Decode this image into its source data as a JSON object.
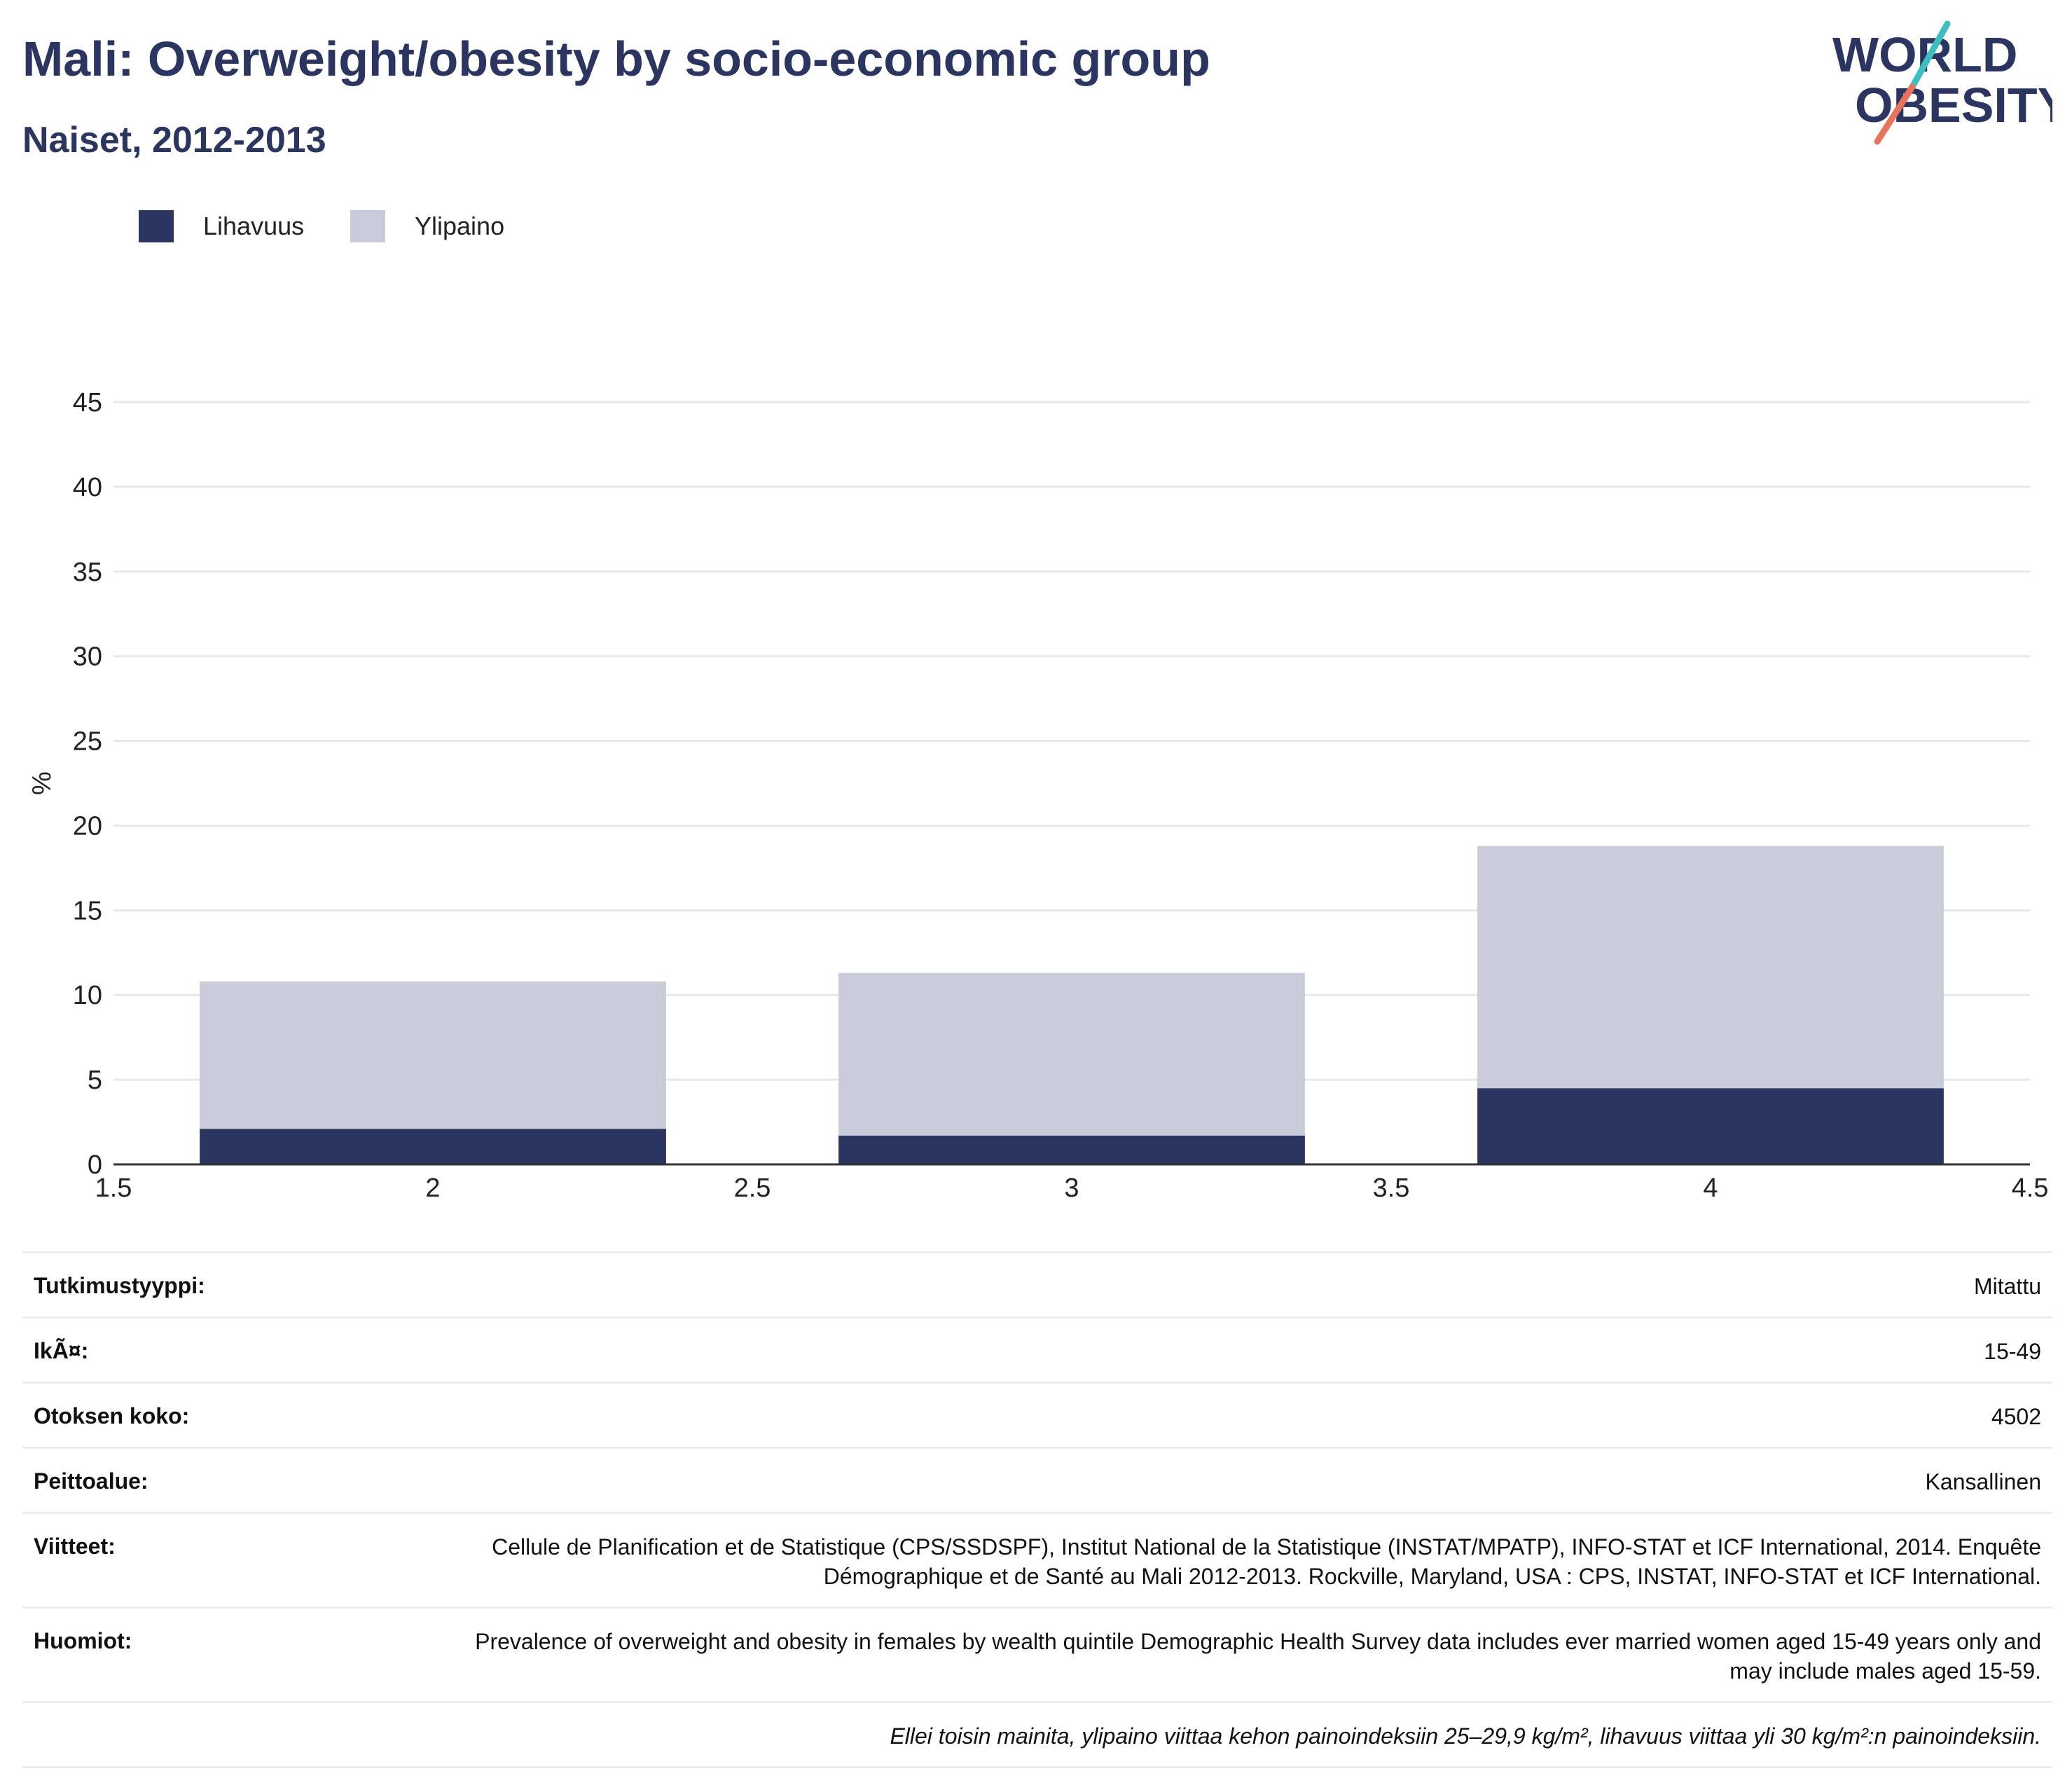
{
  "header": {
    "title": "Mali: Overweight/obesity by socio-economic group",
    "subtitle": "Naiset, 2012-2013"
  },
  "logo": {
    "line1": "WORLD",
    "line2": "OBESITY",
    "colors": {
      "navy": "#2a3562",
      "teal": "#3bbfbf",
      "coral": "#e8735a"
    }
  },
  "legend": [
    {
      "label": "Lihavuus",
      "color": "#2a3562"
    },
    {
      "label": "Ylipaino",
      "color": "#c9ccd8"
    }
  ],
  "chart_data": {
    "type": "bar",
    "stacked": true,
    "x": [
      2,
      3,
      4
    ],
    "series": [
      {
        "name": "Lihavuus",
        "color": "#2a3562",
        "values": [
          2.1,
          1.7,
          4.5
        ]
      },
      {
        "name": "Ylipaino",
        "color": "#c9ccd8",
        "values": [
          8.7,
          9.6,
          14.3
        ]
      }
    ],
    "xlim": [
      1.5,
      4.5
    ],
    "xticks": [
      "1.5",
      "2",
      "2.5",
      "3",
      "3.5",
      "4",
      "4.5"
    ],
    "ylim": [
      0,
      45
    ],
    "yticks": [
      "0",
      "5",
      "10",
      "15",
      "20",
      "25",
      "30",
      "35",
      "40",
      "45"
    ],
    "ylabel": "%",
    "grid": true,
    "legend_position": "top-left"
  },
  "table": [
    {
      "label": "Tutkimustyyppi:",
      "value": "Mitattu"
    },
    {
      "label": "IkÃ¤:",
      "value": "15-49"
    },
    {
      "label": "Otoksen koko:",
      "value": "4502"
    },
    {
      "label": "Peittoalue:",
      "value": "Kansallinen"
    },
    {
      "label": "Viitteet:",
      "value": "Cellule de Planification et de Statistique (CPS/SSDSPF), Institut National de la Statistique (INSTAT/MPATP), INFO-STAT et ICF International, 2014. Enquête Démographique et de Santé au Mali 2012-2013. Rockville, Maryland, USA : CPS, INSTAT, INFO-STAT et ICF International."
    },
    {
      "label": "Huomiot:",
      "value": "Prevalence of overweight and obesity in females by wealth quintile Demographic Health Survey data includes ever married women aged 15-49 years only and may include males aged 15-59."
    }
  ],
  "footnote": "Ellei toisin mainita, ylipaino viittaa kehon painoindeksiin 25–29,9 kg/m², lihavuus viittaa yli 30 kg/m²:n painoindeksiin."
}
